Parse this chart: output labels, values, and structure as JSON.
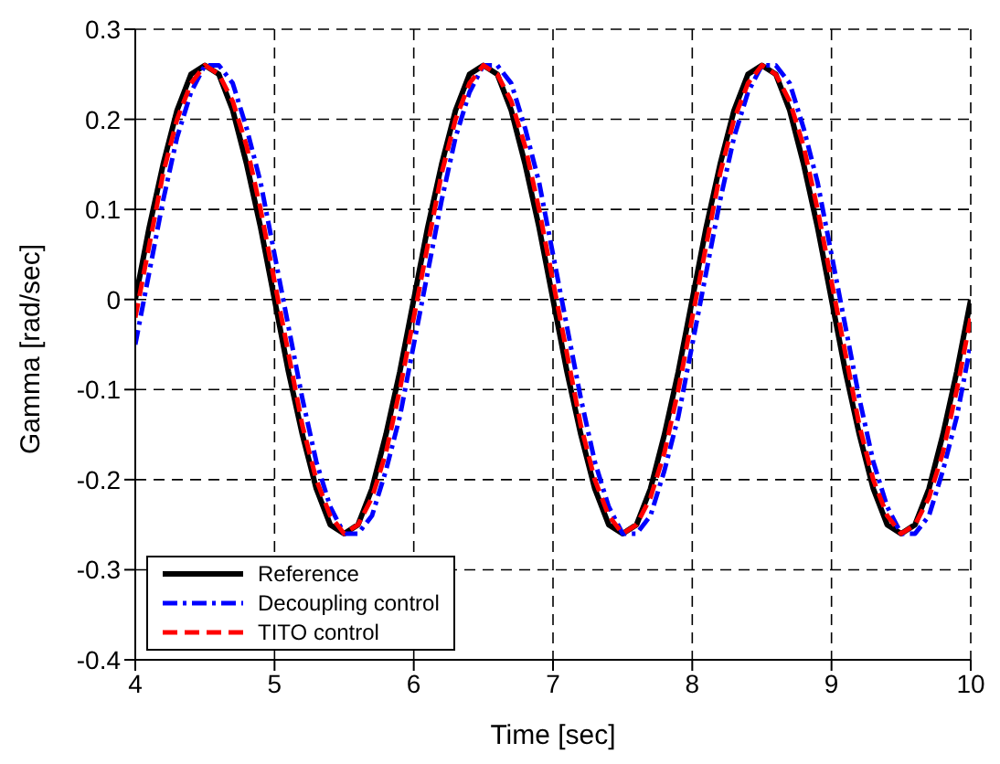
{
  "chart_data": {
    "type": "line",
    "xlabel": "Time [sec]",
    "ylabel": "Gamma [rad/sec]",
    "x": [
      4,
      4.1,
      4.2,
      4.3,
      4.4,
      4.5,
      4.6,
      4.7,
      4.8,
      4.9,
      5,
      5.1,
      5.2,
      5.3,
      5.4,
      5.5,
      5.6,
      5.7,
      5.8,
      5.9,
      6,
      6.1,
      6.2,
      6.3,
      6.4,
      6.5,
      6.6,
      6.7,
      6.8,
      6.9,
      7,
      7.1,
      7.2,
      7.3,
      7.4,
      7.5,
      7.6,
      7.7,
      7.8,
      7.9,
      8,
      8.1,
      8.2,
      8.3,
      8.4,
      8.5,
      8.6,
      8.7,
      8.8,
      8.9,
      9,
      9.1,
      9.2,
      9.3,
      9.4,
      9.5,
      9.6,
      9.7,
      9.8,
      9.9,
      10
    ],
    "series": [
      {
        "name": "Reference",
        "color": "#000000",
        "line_style": "solid",
        "values": [
          0,
          0.08,
          0.15,
          0.21,
          0.25,
          0.26,
          0.25,
          0.21,
          0.15,
          0.08,
          0,
          -0.08,
          -0.15,
          -0.21,
          -0.25,
          -0.26,
          -0.25,
          -0.21,
          -0.15,
          -0.08,
          0,
          0.08,
          0.15,
          0.21,
          0.25,
          0.26,
          0.25,
          0.21,
          0.15,
          0.08,
          0,
          -0.08,
          -0.15,
          -0.21,
          -0.25,
          -0.26,
          -0.25,
          -0.21,
          -0.15,
          -0.08,
          0,
          0.08,
          0.15,
          0.21,
          0.25,
          0.26,
          0.25,
          0.21,
          0.15,
          0.08,
          0,
          -0.08,
          -0.15,
          -0.21,
          -0.25,
          -0.26,
          -0.25,
          -0.21,
          -0.15,
          -0.08,
          0
        ]
      },
      {
        "name": "Decoupling control",
        "color": "#0000ff",
        "line_style": "dotted",
        "values": [
          -0.05,
          0.03,
          0.11,
          0.18,
          0.23,
          0.26,
          0.26,
          0.24,
          0.19,
          0.13,
          0.05,
          -0.03,
          -0.11,
          -0.18,
          -0.23,
          -0.26,
          -0.26,
          -0.24,
          -0.19,
          -0.13,
          -0.05,
          0.03,
          0.11,
          0.18,
          0.23,
          0.26,
          0.26,
          0.24,
          0.19,
          0.13,
          0.05,
          -0.03,
          -0.11,
          -0.18,
          -0.23,
          -0.26,
          -0.26,
          -0.24,
          -0.19,
          -0.13,
          -0.05,
          0.03,
          0.11,
          0.18,
          0.23,
          0.26,
          0.26,
          0.24,
          0.19,
          0.13,
          0.05,
          -0.03,
          -0.11,
          -0.18,
          -0.23,
          -0.26,
          -0.26,
          -0.24,
          -0.19,
          -0.13,
          -0.05
        ]
      },
      {
        "name": "TITO control",
        "color": "#ff0000",
        "line_style": "dashed",
        "values": [
          -0.02,
          0.06,
          0.14,
          0.2,
          0.24,
          0.26,
          0.25,
          0.22,
          0.17,
          0.1,
          0.02,
          -0.06,
          -0.14,
          -0.2,
          -0.24,
          -0.26,
          -0.25,
          -0.22,
          -0.17,
          -0.1,
          -0.02,
          0.06,
          0.14,
          0.2,
          0.24,
          0.26,
          0.25,
          0.22,
          0.17,
          0.1,
          0.02,
          -0.06,
          -0.14,
          -0.2,
          -0.24,
          -0.26,
          -0.25,
          -0.22,
          -0.17,
          -0.1,
          -0.02,
          0.06,
          0.14,
          0.2,
          0.24,
          0.26,
          0.25,
          0.22,
          0.17,
          0.1,
          0.02,
          -0.06,
          -0.14,
          -0.2,
          -0.24,
          -0.26,
          -0.25,
          -0.22,
          -0.17,
          -0.1,
          -0.02
        ]
      }
    ],
    "xlim": [
      4,
      10
    ],
    "xticks": [
      4,
      5,
      6,
      7,
      8,
      9,
      10
    ],
    "ylim": [
      -0.4,
      0.3
    ],
    "yticks": [
      -0.4,
      -0.3,
      -0.2,
      -0.1,
      0,
      0.1,
      0.2,
      0.3
    ],
    "grid": true,
    "legend": "bottom left"
  }
}
